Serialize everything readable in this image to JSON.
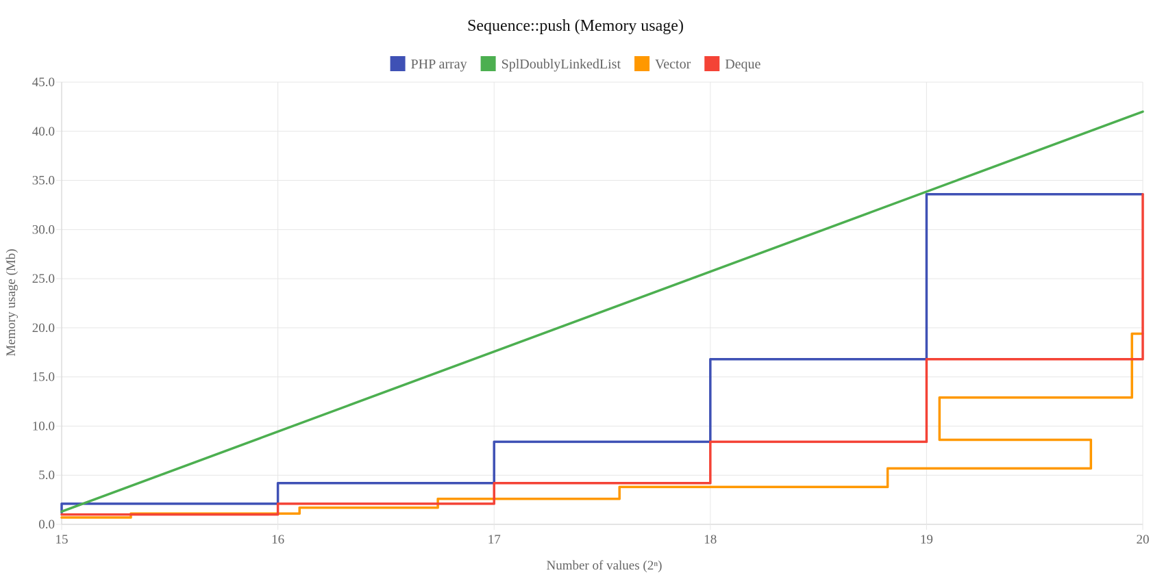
{
  "chart_data": {
    "type": "line",
    "title": "Sequence::push (Memory usage)",
    "xlabel": "Number of values (2ⁿ)",
    "ylabel": "Memory usage (Mb)",
    "xlim": [
      15,
      20
    ],
    "ylim": [
      0,
      45
    ],
    "x_ticks": [
      15,
      16,
      17,
      18,
      19,
      20
    ],
    "x_tick_labels": [
      "15",
      "16",
      "17",
      "18",
      "19",
      "20"
    ],
    "y_ticks": [
      0,
      5,
      10,
      15,
      20,
      25,
      30,
      35,
      40,
      45
    ],
    "y_tick_labels": [
      "0.0",
      "5.0",
      "10.0",
      "15.0",
      "20.0",
      "25.0",
      "30.0",
      "35.0",
      "40.0",
      "45.0"
    ],
    "x_scale": "log2 of number of values",
    "grid": true,
    "legend_position": "top-center",
    "series": [
      {
        "name": "PHP array",
        "color": "#3f51b5",
        "points": [
          [
            15,
            1.2
          ],
          [
            15,
            2.1
          ],
          [
            16,
            2.1
          ],
          [
            16,
            4.2
          ],
          [
            17,
            4.2
          ],
          [
            17,
            8.4
          ],
          [
            18,
            8.4
          ],
          [
            18,
            16.8
          ],
          [
            19,
            16.8
          ],
          [
            19,
            33.6
          ],
          [
            20,
            33.6
          ]
        ]
      },
      {
        "name": "SplDoublyLinkedList",
        "color": "#4caf50",
        "points": [
          [
            15,
            1.3
          ],
          [
            20,
            42.0
          ]
        ]
      },
      {
        "name": "Vector",
        "color": "#ff9800",
        "points": [
          [
            15,
            0.7
          ],
          [
            15.32,
            0.7
          ],
          [
            15.32,
            1.1
          ],
          [
            16.1,
            1.1
          ],
          [
            16.1,
            1.7
          ],
          [
            16.74,
            1.7
          ],
          [
            16.74,
            2.6
          ],
          [
            17.58,
            2.6
          ],
          [
            17.58,
            3.8
          ],
          [
            18.82,
            3.8
          ],
          [
            18.82,
            5.7
          ],
          [
            19.76,
            5.7
          ],
          [
            19.76,
            8.6
          ],
          [
            19.06,
            8.6
          ],
          [
            19.06,
            12.9
          ],
          [
            19.95,
            12.9
          ],
          [
            19.95,
            19.4
          ],
          [
            20,
            19.4
          ]
        ]
      },
      {
        "name": "Deque",
        "color": "#f44336",
        "points": [
          [
            15,
            1.0
          ],
          [
            16,
            1.0
          ],
          [
            16,
            2.1
          ],
          [
            17,
            2.1
          ],
          [
            17,
            4.2
          ],
          [
            18,
            4.2
          ],
          [
            18,
            8.4
          ],
          [
            19,
            8.4
          ],
          [
            19,
            16.8
          ],
          [
            20,
            16.8
          ],
          [
            20,
            33.6
          ]
        ]
      }
    ]
  }
}
